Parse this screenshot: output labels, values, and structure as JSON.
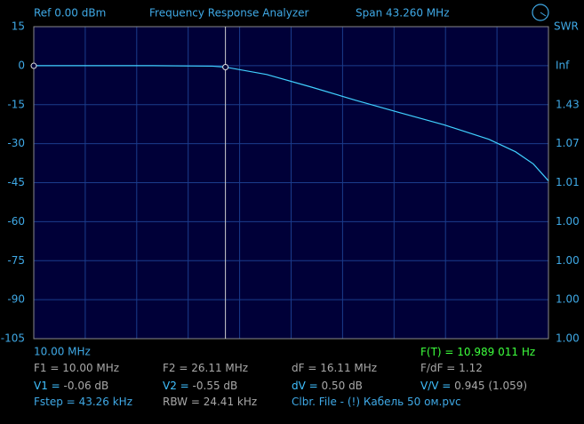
{
  "header": {
    "ref": "Ref  0.00 dBm",
    "title": "Frequency Response Analyzer",
    "span": "Span 43.260 MHz"
  },
  "chart_data": {
    "type": "line",
    "xlim": [
      10,
      53.26
    ],
    "ylim": [
      -105,
      15
    ],
    "yticks": [
      15,
      0,
      -15,
      -30,
      -45,
      -60,
      -75,
      -90,
      -105
    ],
    "y2_title": "SWR",
    "y2_labels": [
      "Inf",
      "1.43",
      "1.07",
      "1.01",
      "1.00",
      "1.00",
      "1.00",
      "1.00"
    ],
    "x_start": "10.00 MHz",
    "series": [
      {
        "color": "#40d0ff",
        "x": [
          10,
          15,
          20,
          25,
          26.11,
          29.58,
          33.31,
          37.05,
          40.78,
          44.52,
          48.25,
          50.49,
          51.99,
          53.26
        ],
        "values": [
          0,
          0,
          0,
          -0.2,
          -0.55,
          -3.4,
          -8.2,
          -13.3,
          -18.1,
          -22.8,
          -28.3,
          -33.1,
          -37.8,
          -44.3
        ]
      }
    ],
    "markers": {
      "x": [
        10,
        26.11
      ],
      "values": [
        -0.06,
        -0.55
      ]
    },
    "grid": true
  },
  "readouts": {
    "ft": {
      "label": "F(T) =",
      "value": "10.989 011 Hz"
    },
    "rows": [
      [
        {
          "label": "F1 =",
          "value": "10.00 MHz"
        },
        {
          "label": "F2 =",
          "value": "26.11 MHz"
        },
        {
          "label": "dF =",
          "value": "16.11 MHz"
        },
        {
          "label": "F/dF =",
          "value": "1.12"
        }
      ],
      [
        {
          "label": "V1 =",
          "value": "-0.06 dB"
        },
        {
          "label": "V2 =",
          "value": "-0.55 dB"
        },
        {
          "label": "dV =",
          "value": "0.50 dB"
        },
        {
          "label": "V/V =",
          "value": "0.945 (1.059)"
        }
      ],
      [
        {
          "label": "Fstep =",
          "value": "43.26 kHz"
        },
        {
          "label": "RBW =",
          "value": "24.41 kHz"
        },
        {
          "label": "Clbr. File -",
          "value": "(!) Кабель 50 ом.pvc"
        }
      ]
    ]
  }
}
